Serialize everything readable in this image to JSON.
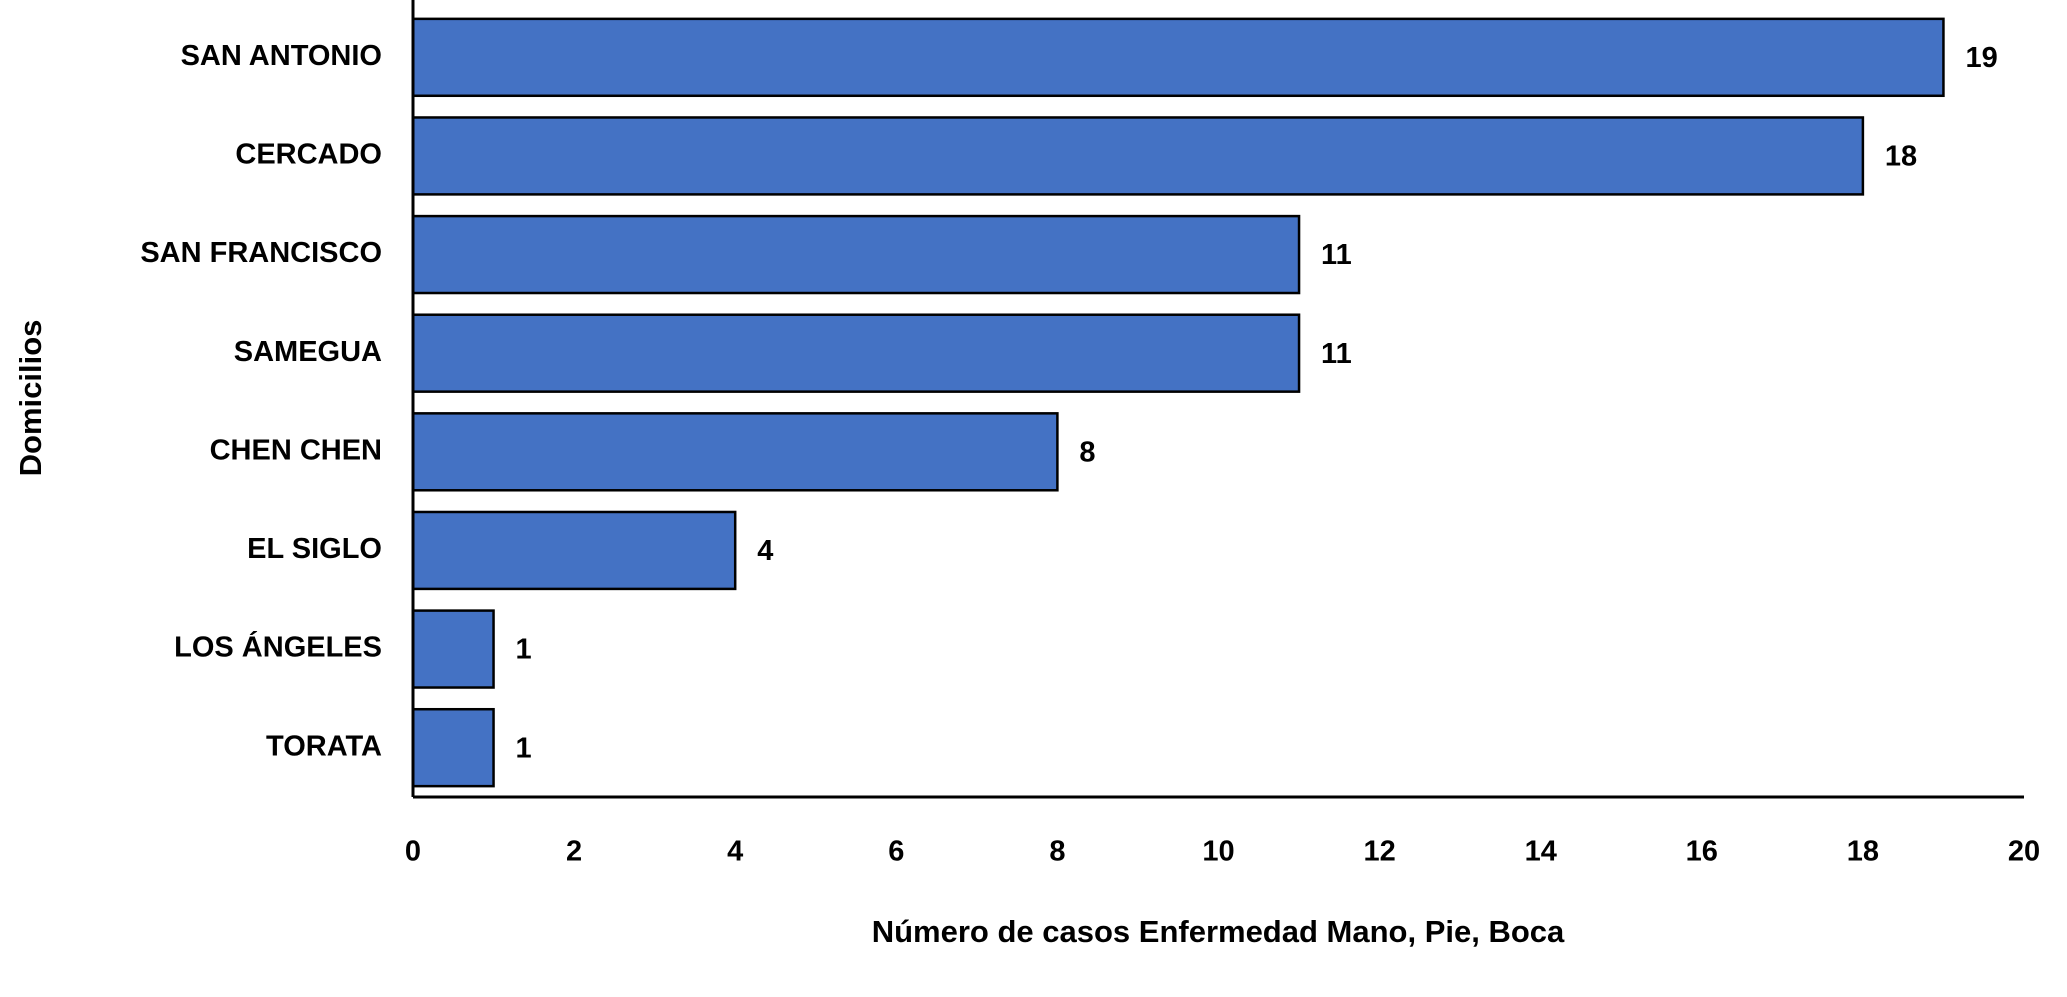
{
  "chart_data": {
    "type": "bar",
    "orientation": "horizontal",
    "xlabel": "Número de casos Enfermedad Mano, Pie, Boca",
    "ylabel": "Domicilios",
    "categories": [
      "SAN ANTONIO",
      "CERCADO",
      "SAN FRANCISCO",
      "SAMEGUA",
      "CHEN CHEN",
      "EL SIGLO",
      "LOS ÁNGELES",
      "TORATA"
    ],
    "values": [
      19,
      18,
      11,
      11,
      8,
      4,
      1,
      1
    ],
    "color": "#4472c4",
    "xlim": [
      0,
      20
    ],
    "xticks": [
      0,
      2,
      4,
      6,
      8,
      10,
      12,
      14,
      16,
      18,
      20
    ],
    "grid": false
  }
}
